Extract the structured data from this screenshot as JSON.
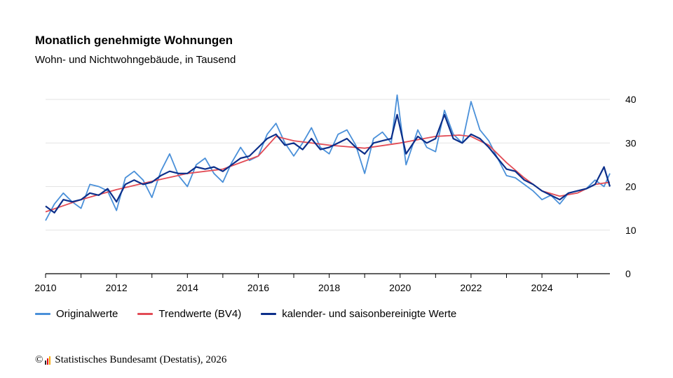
{
  "title": "Monatlich genehmigte Wohnungen",
  "subtitle": "Wohn- und Nichtwohngebäude, in Tausend",
  "source": {
    "copyright_symbol": "©",
    "text": "Statistisches Bundesamt (Destatis), 2026",
    "logo_icon": "destatis-logo-icon",
    "logo_colors": [
      "#e30613",
      "#f5a800",
      "#2c2c2c"
    ]
  },
  "chart_data": {
    "type": "line",
    "title": "Monatlich genehmigte Wohnungen",
    "subtitle": "Wohn- und Nichtwohngebäude, in Tausend",
    "x_ticks": [
      "2010",
      "2012",
      "2014",
      "2016",
      "2018",
      "2020",
      "2022",
      "2024"
    ],
    "y_ticks": [
      0,
      10,
      20,
      30,
      40
    ],
    "xlim": [
      "2010-01",
      "2025-12"
    ],
    "ylim": [
      0,
      40
    ],
    "y_axis_side": "right",
    "grid": "horizontal",
    "legend_position": "bottom-left",
    "anchor_points_note": "",
    "series": [
      {
        "name": "Originalwerte",
        "color": "#4a90d9",
        "points": [
          [
            "2010-01",
            12.2
          ],
          [
            "2010-04",
            16.0
          ],
          [
            "2010-07",
            18.5
          ],
          [
            "2010-10",
            16.5
          ],
          [
            "2011-01",
            15.0
          ],
          [
            "2011-04",
            20.5
          ],
          [
            "2011-07",
            20.0
          ],
          [
            "2011-10",
            19.0
          ],
          [
            "2012-01",
            14.5
          ],
          [
            "2012-04",
            22.0
          ],
          [
            "2012-07",
            23.5
          ],
          [
            "2012-10",
            21.5
          ],
          [
            "2013-01",
            17.5
          ],
          [
            "2013-04",
            23.5
          ],
          [
            "2013-07",
            27.5
          ],
          [
            "2013-10",
            22.5
          ],
          [
            "2014-01",
            20.0
          ],
          [
            "2014-04",
            25.0
          ],
          [
            "2014-07",
            26.5
          ],
          [
            "2014-10",
            23.0
          ],
          [
            "2015-01",
            21.0
          ],
          [
            "2015-04",
            25.5
          ],
          [
            "2015-07",
            29.0
          ],
          [
            "2015-10",
            26.0
          ],
          [
            "2016-01",
            27.0
          ],
          [
            "2016-04",
            32.0
          ],
          [
            "2016-07",
            34.5
          ],
          [
            "2016-10",
            30.0
          ],
          [
            "2017-01",
            27.0
          ],
          [
            "2017-04",
            30.0
          ],
          [
            "2017-07",
            33.5
          ],
          [
            "2017-10",
            29.0
          ],
          [
            "2018-01",
            27.5
          ],
          [
            "2018-04",
            32.0
          ],
          [
            "2018-07",
            33.0
          ],
          [
            "2018-10",
            29.5
          ],
          [
            "2019-01",
            23.0
          ],
          [
            "2019-04",
            31.0
          ],
          [
            "2019-07",
            32.5
          ],
          [
            "2019-10",
            30.0
          ],
          [
            "2019-12",
            41.0
          ],
          [
            "2020-03",
            25.0
          ],
          [
            "2020-07",
            33.0
          ],
          [
            "2020-10",
            29.0
          ],
          [
            "2021-01",
            28.0
          ],
          [
            "2021-04",
            37.5
          ],
          [
            "2021-07",
            32.0
          ],
          [
            "2021-10",
            30.0
          ],
          [
            "2022-01",
            39.5
          ],
          [
            "2022-04",
            33.0
          ],
          [
            "2022-07",
            30.5
          ],
          [
            "2022-10",
            26.5
          ],
          [
            "2023-01",
            22.5
          ],
          [
            "2023-04",
            22.0
          ],
          [
            "2023-07",
            20.5
          ],
          [
            "2023-10",
            19.0
          ],
          [
            "2024-01",
            17.0
          ],
          [
            "2024-04",
            18.0
          ],
          [
            "2024-07",
            16.0
          ],
          [
            "2024-10",
            18.5
          ],
          [
            "2025-01",
            19.0
          ],
          [
            "2025-04",
            19.5
          ],
          [
            "2025-07",
            21.5
          ],
          [
            "2025-10",
            20.0
          ],
          [
            "2025-12",
            23.0
          ]
        ]
      },
      {
        "name": "Trendwerte (BV4)",
        "color": "#e24b55",
        "points": [
          [
            "2010-01",
            14.2
          ],
          [
            "2011-01",
            17.0
          ],
          [
            "2012-01",
            19.3
          ],
          [
            "2013-01",
            21.2
          ],
          [
            "2014-01",
            23.0
          ],
          [
            "2015-01",
            24.0
          ],
          [
            "2016-01",
            27.0
          ],
          [
            "2016-07",
            31.5
          ],
          [
            "2017-01",
            30.5
          ],
          [
            "2018-01",
            29.5
          ],
          [
            "2019-01",
            28.8
          ],
          [
            "2020-01",
            30.0
          ],
          [
            "2021-01",
            31.5
          ],
          [
            "2021-09",
            31.8
          ],
          [
            "2022-01",
            31.5
          ],
          [
            "2022-07",
            29.5
          ],
          [
            "2023-01",
            25.5
          ],
          [
            "2023-07",
            22.0
          ],
          [
            "2024-01",
            19.0
          ],
          [
            "2024-07",
            17.8
          ],
          [
            "2025-01",
            18.5
          ],
          [
            "2025-07",
            20.5
          ],
          [
            "2025-12",
            21.0
          ]
        ]
      },
      {
        "name": "kalender- und saisonbereinigte Werte",
        "color": "#0c2f8a",
        "points": [
          [
            "2010-01",
            15.5
          ],
          [
            "2010-04",
            14.0
          ],
          [
            "2010-07",
            17.0
          ],
          [
            "2010-10",
            16.5
          ],
          [
            "2011-01",
            17.0
          ],
          [
            "2011-04",
            18.5
          ],
          [
            "2011-07",
            18.0
          ],
          [
            "2011-10",
            19.5
          ],
          [
            "2012-01",
            16.5
          ],
          [
            "2012-04",
            20.5
          ],
          [
            "2012-07",
            21.5
          ],
          [
            "2012-10",
            20.5
          ],
          [
            "2013-01",
            21.0
          ],
          [
            "2013-04",
            22.5
          ],
          [
            "2013-07",
            23.5
          ],
          [
            "2013-10",
            23.0
          ],
          [
            "2014-01",
            23.0
          ],
          [
            "2014-04",
            24.5
          ],
          [
            "2014-07",
            24.0
          ],
          [
            "2014-10",
            24.5
          ],
          [
            "2015-01",
            23.5
          ],
          [
            "2015-04",
            25.0
          ],
          [
            "2015-07",
            26.5
          ],
          [
            "2015-10",
            27.0
          ],
          [
            "2016-01",
            29.0
          ],
          [
            "2016-04",
            31.0
          ],
          [
            "2016-07",
            32.0
          ],
          [
            "2016-10",
            29.5
          ],
          [
            "2017-01",
            30.0
          ],
          [
            "2017-04",
            28.5
          ],
          [
            "2017-07",
            31.0
          ],
          [
            "2017-10",
            28.5
          ],
          [
            "2018-01",
            29.0
          ],
          [
            "2018-04",
            30.0
          ],
          [
            "2018-07",
            31.0
          ],
          [
            "2018-10",
            29.0
          ],
          [
            "2019-01",
            27.5
          ],
          [
            "2019-04",
            30.0
          ],
          [
            "2019-07",
            30.5
          ],
          [
            "2019-10",
            31.0
          ],
          [
            "2019-12",
            36.5
          ],
          [
            "2020-03",
            27.5
          ],
          [
            "2020-07",
            31.5
          ],
          [
            "2020-10",
            30.0
          ],
          [
            "2021-01",
            31.0
          ],
          [
            "2021-04",
            36.5
          ],
          [
            "2021-07",
            31.0
          ],
          [
            "2021-10",
            30.0
          ],
          [
            "2022-01",
            32.0
          ],
          [
            "2022-04",
            31.0
          ],
          [
            "2022-07",
            29.0
          ],
          [
            "2022-10",
            26.5
          ],
          [
            "2023-01",
            24.0
          ],
          [
            "2023-04",
            23.5
          ],
          [
            "2023-07",
            21.5
          ],
          [
            "2023-10",
            20.5
          ],
          [
            "2024-01",
            19.0
          ],
          [
            "2024-04",
            18.0
          ],
          [
            "2024-07",
            17.0
          ],
          [
            "2024-10",
            18.5
          ],
          [
            "2025-01",
            19.0
          ],
          [
            "2025-04",
            19.5
          ],
          [
            "2025-07",
            20.5
          ],
          [
            "2025-10",
            24.5
          ],
          [
            "2025-12",
            20.0
          ]
        ]
      }
    ]
  }
}
